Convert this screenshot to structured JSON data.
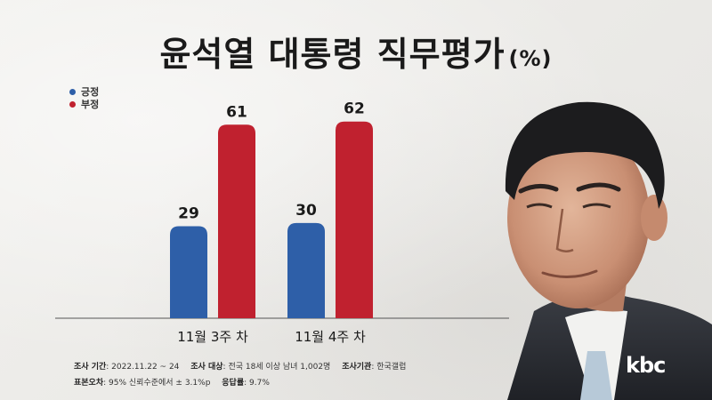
{
  "title": "윤석열 대통령 직무평가",
  "title_unit": "(%)",
  "colors": {
    "positive": "#2e5fa8",
    "negative": "#c0212f"
  },
  "chart_data": {
    "type": "bar",
    "categories": [
      "11월 3주 차",
      "11월 4주 차"
    ],
    "series": [
      {
        "name": "긍정",
        "values": [
          29,
          30
        ]
      },
      {
        "name": "부정",
        "values": [
          61,
          62
        ]
      }
    ],
    "ylim": [
      0,
      65
    ],
    "grid": false,
    "legend_position": "top-left"
  },
  "footnote": {
    "line1": [
      {
        "label": "조사 기간",
        "value": ": 2022.11.22 ~ 24"
      },
      {
        "label": "조사 대상",
        "value": ": 전국 18세 이상 남녀 1,002명"
      },
      {
        "label": "조사기관",
        "value": ": 한국갤럽"
      }
    ],
    "line2": [
      {
        "label": "표본오차",
        "value": ": 95% 신뢰수준에서 ± 3.1%p"
      },
      {
        "label": "응답률",
        "value": ": 9.7%"
      }
    ]
  },
  "logo": "kbc"
}
